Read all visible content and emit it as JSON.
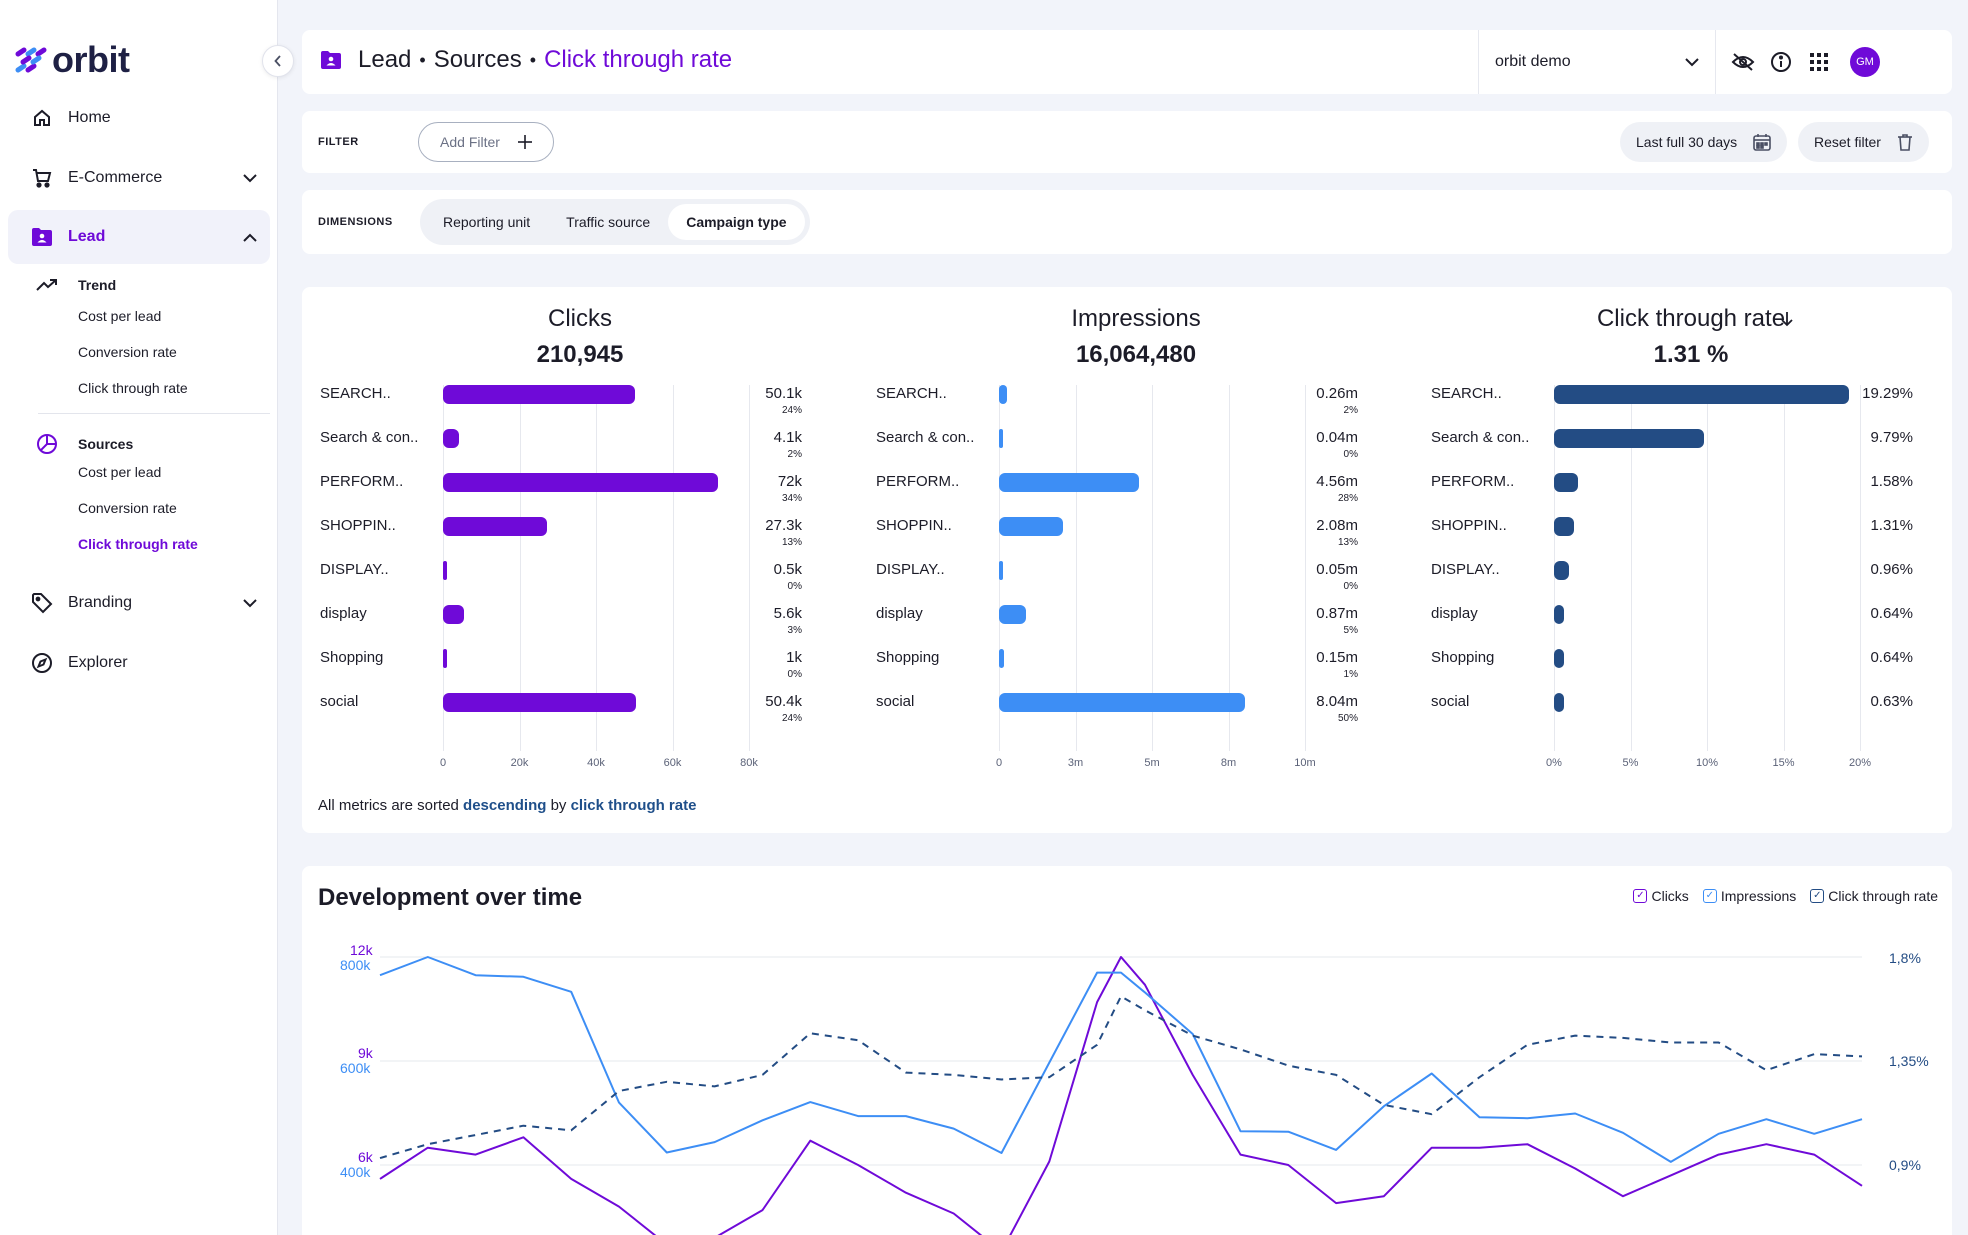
{
  "app": {
    "name": "orbit"
  },
  "sidebar": {
    "home": "Home",
    "ecommerce": "E-Commerce",
    "lead": "Lead",
    "trend": "Trend",
    "trend_items": [
      "Cost per lead",
      "Conversion rate",
      "Click through rate"
    ],
    "sources": "Sources",
    "sources_items": [
      "Cost per lead",
      "Conversion rate",
      "Click through rate"
    ],
    "branding": "Branding",
    "explorer": "Explorer"
  },
  "header": {
    "crumb1": "Lead",
    "crumb2": "Sources",
    "crumb3": "Click through rate",
    "separator": "•",
    "account": "orbit demo",
    "avatar": "GM"
  },
  "filter": {
    "label": "FILTER",
    "add_filter": "Add Filter",
    "date_range": "Last full 30 days",
    "reset": "Reset filter"
  },
  "dimensions": {
    "label": "DIMENSIONS",
    "tabs": [
      "Reporting unit",
      "Traffic source",
      "Campaign type"
    ],
    "active": "Campaign type"
  },
  "metrics": {
    "sort_note_prefix": "All metrics are sorted",
    "sort_note_dir": "descending",
    "sort_note_mid": "by",
    "sort_note_metric": "click through rate",
    "columns": [
      {
        "title": "Clicks",
        "total": "210,945",
        "color": "#6f0ad8",
        "max": 80,
        "ticks": [
          "0",
          "20k",
          "40k",
          "60k",
          "80k"
        ],
        "rows": [
          {
            "label": "SEARCH..",
            "value": 50.1,
            "display": "50.1k",
            "pct": "24%"
          },
          {
            "label": "Search & con..",
            "value": 4.1,
            "display": "4.1k",
            "pct": "2%"
          },
          {
            "label": "PERFORM..",
            "value": 72,
            "display": "72k",
            "pct": "34%"
          },
          {
            "label": "SHOPPIN..",
            "value": 27.3,
            "display": "27.3k",
            "pct": "13%"
          },
          {
            "label": "DISPLAY..",
            "value": 0.5,
            "display": "0.5k",
            "pct": "0%"
          },
          {
            "label": "display",
            "value": 5.6,
            "display": "5.6k",
            "pct": "3%"
          },
          {
            "label": "Shopping",
            "value": 1,
            "display": "1k",
            "pct": "0%"
          },
          {
            "label": "social",
            "value": 50.4,
            "display": "50.4k",
            "pct": "24%"
          }
        ]
      },
      {
        "title": "Impressions",
        "total": "16,064,480",
        "color": "#3d8ef5",
        "max": 10,
        "ticks": [
          "0",
          "3m",
          "5m",
          "8m",
          "10m"
        ],
        "rows": [
          {
            "label": "SEARCH..",
            "value": 0.26,
            "display": "0.26m",
            "pct": "2%"
          },
          {
            "label": "Search & con..",
            "value": 0.04,
            "display": "0.04m",
            "pct": "0%"
          },
          {
            "label": "PERFORM..",
            "value": 4.56,
            "display": "4.56m",
            "pct": "28%"
          },
          {
            "label": "SHOPPIN..",
            "value": 2.08,
            "display": "2.08m",
            "pct": "13%"
          },
          {
            "label": "DISPLAY..",
            "value": 0.05,
            "display": "0.05m",
            "pct": "0%"
          },
          {
            "label": "display",
            "value": 0.87,
            "display": "0.87m",
            "pct": "5%"
          },
          {
            "label": "Shopping",
            "value": 0.15,
            "display": "0.15m",
            "pct": "1%"
          },
          {
            "label": "social",
            "value": 8.04,
            "display": "8.04m",
            "pct": "50%"
          }
        ]
      },
      {
        "title": "Click through rate",
        "total": "1.31 %",
        "color": "#234c84",
        "max": 20,
        "ticks": [
          "0%",
          "5%",
          "10%",
          "15%",
          "20%"
        ],
        "sorted": true,
        "rows": [
          {
            "label": "SEARCH..",
            "value": 19.29,
            "display": "19.29%",
            "pct": ""
          },
          {
            "label": "Search & con..",
            "value": 9.79,
            "display": "9.79%",
            "pct": ""
          },
          {
            "label": "PERFORM..",
            "value": 1.58,
            "display": "1.58%",
            "pct": ""
          },
          {
            "label": "SHOPPIN..",
            "value": 1.31,
            "display": "1.31%",
            "pct": ""
          },
          {
            "label": "DISPLAY..",
            "value": 0.96,
            "display": "0.96%",
            "pct": ""
          },
          {
            "label": "display",
            "value": 0.64,
            "display": "0.64%",
            "pct": ""
          },
          {
            "label": "Shopping",
            "value": 0.64,
            "display": "0.64%",
            "pct": ""
          },
          {
            "label": "social",
            "value": 0.63,
            "display": "0.63%",
            "pct": ""
          }
        ]
      }
    ]
  },
  "development": {
    "title": "Development over time",
    "legend": [
      "Clicks",
      "Impressions",
      "Click through rate"
    ],
    "left_clicks_ticks": [
      "12k",
      "9k",
      "6k"
    ],
    "left_impr_ticks": [
      "800k",
      "600k",
      "400k"
    ],
    "right_ticks": [
      "1,8%",
      "1,35%",
      "0,9%"
    ]
  },
  "chart_data": {
    "type": "line",
    "title": "Development over time",
    "x": [
      1,
      2,
      3,
      4,
      5,
      6,
      7,
      8,
      9,
      10,
      11,
      12,
      13,
      14,
      15,
      16,
      16.5,
      17,
      18,
      19,
      20,
      21,
      22,
      23,
      24,
      25,
      26,
      27,
      28,
      29,
      30,
      31,
      32
    ],
    "series": [
      {
        "name": "Clicks",
        "axis": "left-clicks",
        "ylim": [
          6000,
          12000
        ],
        "values": [
          5600,
          6500,
          6300,
          6800,
          5600,
          4800,
          3700,
          3900,
          4700,
          6700,
          6000,
          5200,
          4600,
          3500,
          6100,
          10700,
          12000,
          11200,
          8600,
          6300,
          6000,
          4900,
          5100,
          6500,
          6500,
          6600,
          5900,
          5100,
          5700,
          6300,
          6600,
          6300,
          5400
        ]
      },
      {
        "name": "Impressions",
        "axis": "left-impressions",
        "ylim": [
          400000,
          800000
        ],
        "values": [
          765000,
          800000,
          765000,
          762000,
          733000,
          520000,
          424000,
          444000,
          486000,
          521000,
          494000,
          494000,
          470000,
          423000,
          597000,
          770000,
          770000,
          732000,
          652000,
          465000,
          464000,
          429000,
          513000,
          576000,
          492000,
          490000,
          499000,
          462000,
          406000,
          460000,
          488000,
          460000,
          488000
        ]
      },
      {
        "name": "Click through rate",
        "axis": "right",
        "ylim": [
          0.9,
          1.8
        ],
        "dashed": true,
        "values": [
          0.93,
          0.99,
          1.03,
          1.07,
          1.05,
          1.22,
          1.26,
          1.24,
          1.29,
          1.47,
          1.44,
          1.3,
          1.29,
          1.27,
          1.28,
          1.42,
          1.63,
          1.57,
          1.46,
          1.4,
          1.33,
          1.29,
          1.16,
          1.12,
          1.28,
          1.42,
          1.46,
          1.45,
          1.43,
          1.43,
          1.31,
          1.38,
          1.37
        ]
      }
    ]
  }
}
